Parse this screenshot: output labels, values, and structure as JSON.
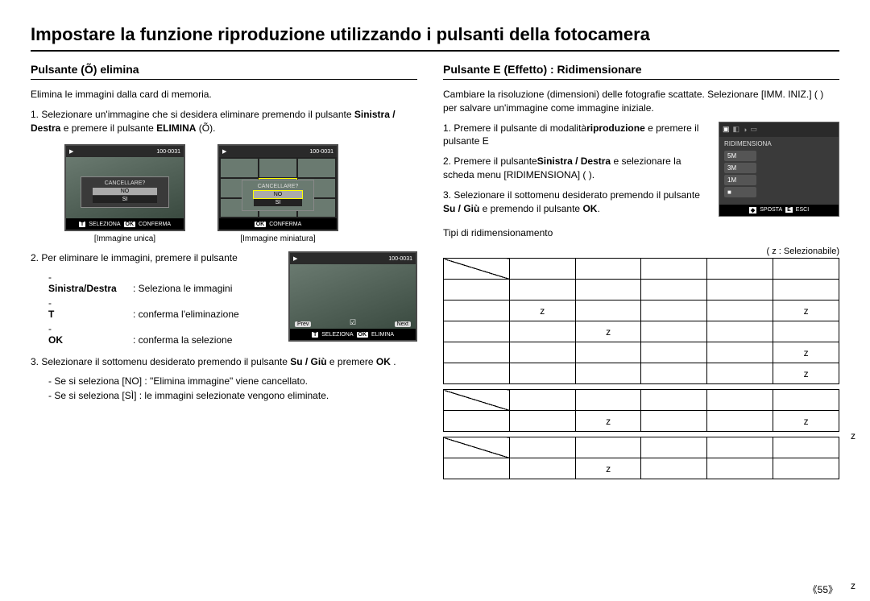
{
  "page": {
    "title": "Impostare la funzione riproduzione utilizzando i pulsanti della fotocamera",
    "number": "《55》"
  },
  "left": {
    "heading": "Pulsante (Õ) elimina",
    "intro": "Elimina le immagini dalla card di memoria.",
    "step1_pre": "1.  Selezionare un'immagine che si desidera eliminare premendo il pulsante ",
    "step1_bold": "Sinistra / Destra",
    "step1_mid": " e premere il pulsante ",
    "step1_bold2": "ELIMINA",
    "step1_post": " (Õ).",
    "lcd": {
      "file_no": "100-0031",
      "dialog_q": "CANCELLARE?",
      "opt_no": "NO",
      "opt_si": "SI",
      "bot_t": "T",
      "bot_seleziona": "SELEZIONA",
      "bot_ok": "OK",
      "bot_conferma": "CONFERMA",
      "caption_single": "[Immagine unica]",
      "caption_thumb": "[Immagine miniatura]",
      "bot_elimina": "ELIMINA",
      "prev": "Prev",
      "next": "Next"
    },
    "step2_text": "2.  Per eliminare le immagini, premere il pulsante",
    "step2_items": {
      "a_k": "Sinistra/Destra",
      "a_v": ": Seleziona le immagini",
      "b_k": "T",
      "b_v": ": conferma l'eliminazione",
      "c_k": "OK",
      "c_v": ": conferma la selezione"
    },
    "step3_pre": "3.  Selezionare il sottomenu desiderato premendo il pulsante ",
    "step3_bold": "Su / Giù",
    "step3_post": " e premere ",
    "step3_bold2": "OK",
    "step3_end": ".",
    "step3_items": {
      "a": "Se si seleziona [NO] : \"Elimina immagine\" viene cancellato.",
      "b": "Se si seleziona [SÌ]   : le immagini selezionate vengono eliminate."
    }
  },
  "right": {
    "heading": "Pulsante E (Effetto) : Ridimensionare",
    "intro": "Cambiare la risoluzione (dimensioni) delle fotografie scattate.  Selezionare [IMM. INIZ.] (    ) per salvare un'immagine come immagine iniziale.",
    "step1_pre": "1.  Premere il pulsante di modalità",
    "step1_bold": "riproduzione",
    "step1_post": " e premere il pulsante E",
    "step2_pre": "2.  Premere il pulsante",
    "step2_bold": "Sinistra / Destra",
    "step2_mid": " e selezionare la scheda menu [RIDIMENSIONA] (    ).",
    "step3_pre": "3.  Selezionare il sottomenu desiderato premendo il pulsante ",
    "step3_bold": "Su / Giù",
    "step3_mid": " e premendo il pulsante ",
    "step3_bold2": "OK",
    "step3_end": ".",
    "menu": {
      "title": "RIDIMENSIONA",
      "items": [
        "5M",
        "3M",
        "1M",
        "■"
      ],
      "bot_move_key": "◆",
      "bot_move": "SPOSTA",
      "bot_e_key": "E",
      "bot_e": "ESCI"
    },
    "types_label": "Tipi di ridimensionamento",
    "legend": "(  z :  Selezionabile)",
    "tables": {
      "t1": {
        "headers": [
          "",
          "",
          "",
          "",
          "",
          ""
        ],
        "rows": [
          [
            "",
            "",
            "",
            "",
            "",
            ""
          ],
          [
            "",
            "z",
            "",
            "",
            "",
            "z"
          ],
          [
            "",
            "",
            "z",
            "",
            "",
            ""
          ],
          [
            "",
            "",
            "",
            "",
            "",
            "z"
          ],
          [
            "",
            "",
            "",
            "",
            "",
            "z"
          ]
        ],
        "col_head_5": "",
        "col_head_6": ""
      },
      "t2": {
        "headers": [
          "",
          "",
          "",
          "",
          "",
          ""
        ],
        "rows": [
          [
            "",
            "",
            "z",
            "",
            "",
            "z"
          ]
        ]
      },
      "t3": {
        "headers": [
          "",
          "",
          "",
          "",
          "",
          ""
        ],
        "rows": [
          [
            "",
            "",
            "z",
            "",
            "",
            ""
          ]
        ]
      }
    }
  },
  "style": {
    "diag_bg": "#ffffff"
  }
}
